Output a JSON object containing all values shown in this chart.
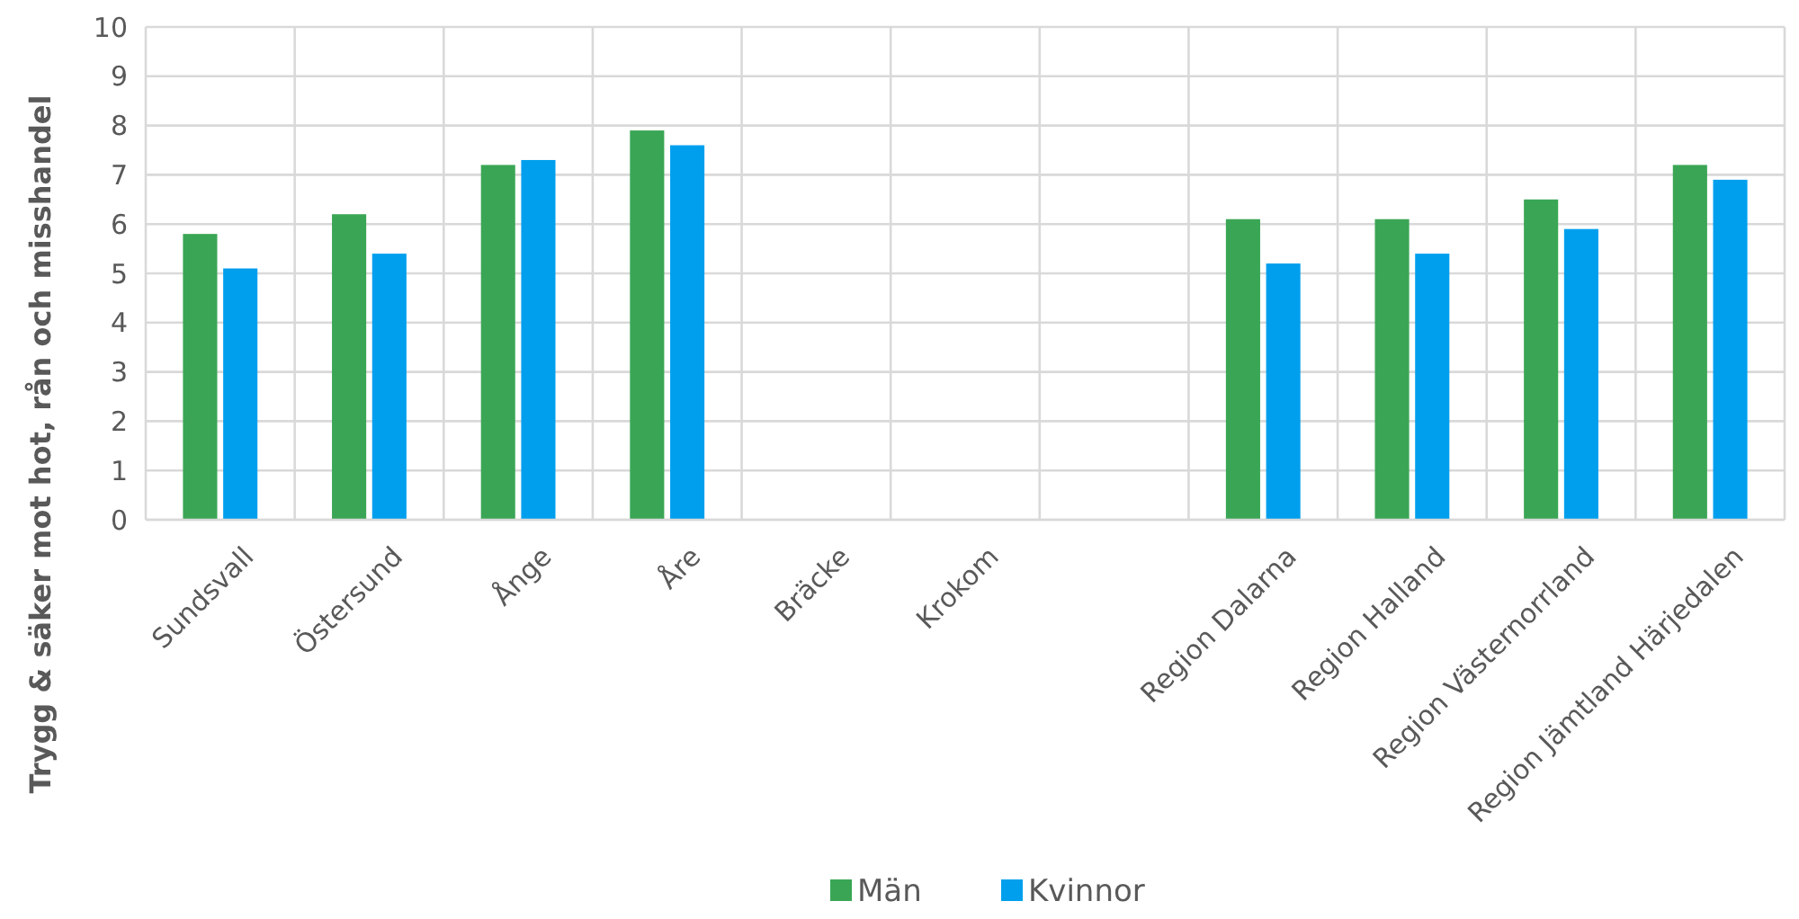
{
  "chart_data": {
    "type": "bar",
    "ylabel": "Trygg & säker mot hot, rån och misshandel",
    "categories": [
      "Sundsvall",
      "Östersund",
      "Ånge",
      "Åre",
      "Bräcke",
      "Krokom",
      null,
      "Region Dalarna",
      "Region Halland",
      "Region Västernorrland",
      "Region Jämtland Härjedalen"
    ],
    "series": [
      {
        "name": "Män",
        "color": "#3aa655",
        "values": [
          5.8,
          6.2,
          7.2,
          7.9,
          null,
          null,
          null,
          6.1,
          6.1,
          6.5,
          7.2
        ]
      },
      {
        "name": "Kvinnor",
        "color": "#009fee",
        "values": [
          5.1,
          5.4,
          7.3,
          7.6,
          null,
          null,
          null,
          5.2,
          5.4,
          5.9,
          6.9
        ]
      }
    ],
    "ylim": [
      0,
      10
    ],
    "yticks": [
      0,
      1,
      2,
      3,
      4,
      5,
      6,
      7,
      8,
      9,
      10
    ],
    "grid": true,
    "legend": "bottom"
  }
}
